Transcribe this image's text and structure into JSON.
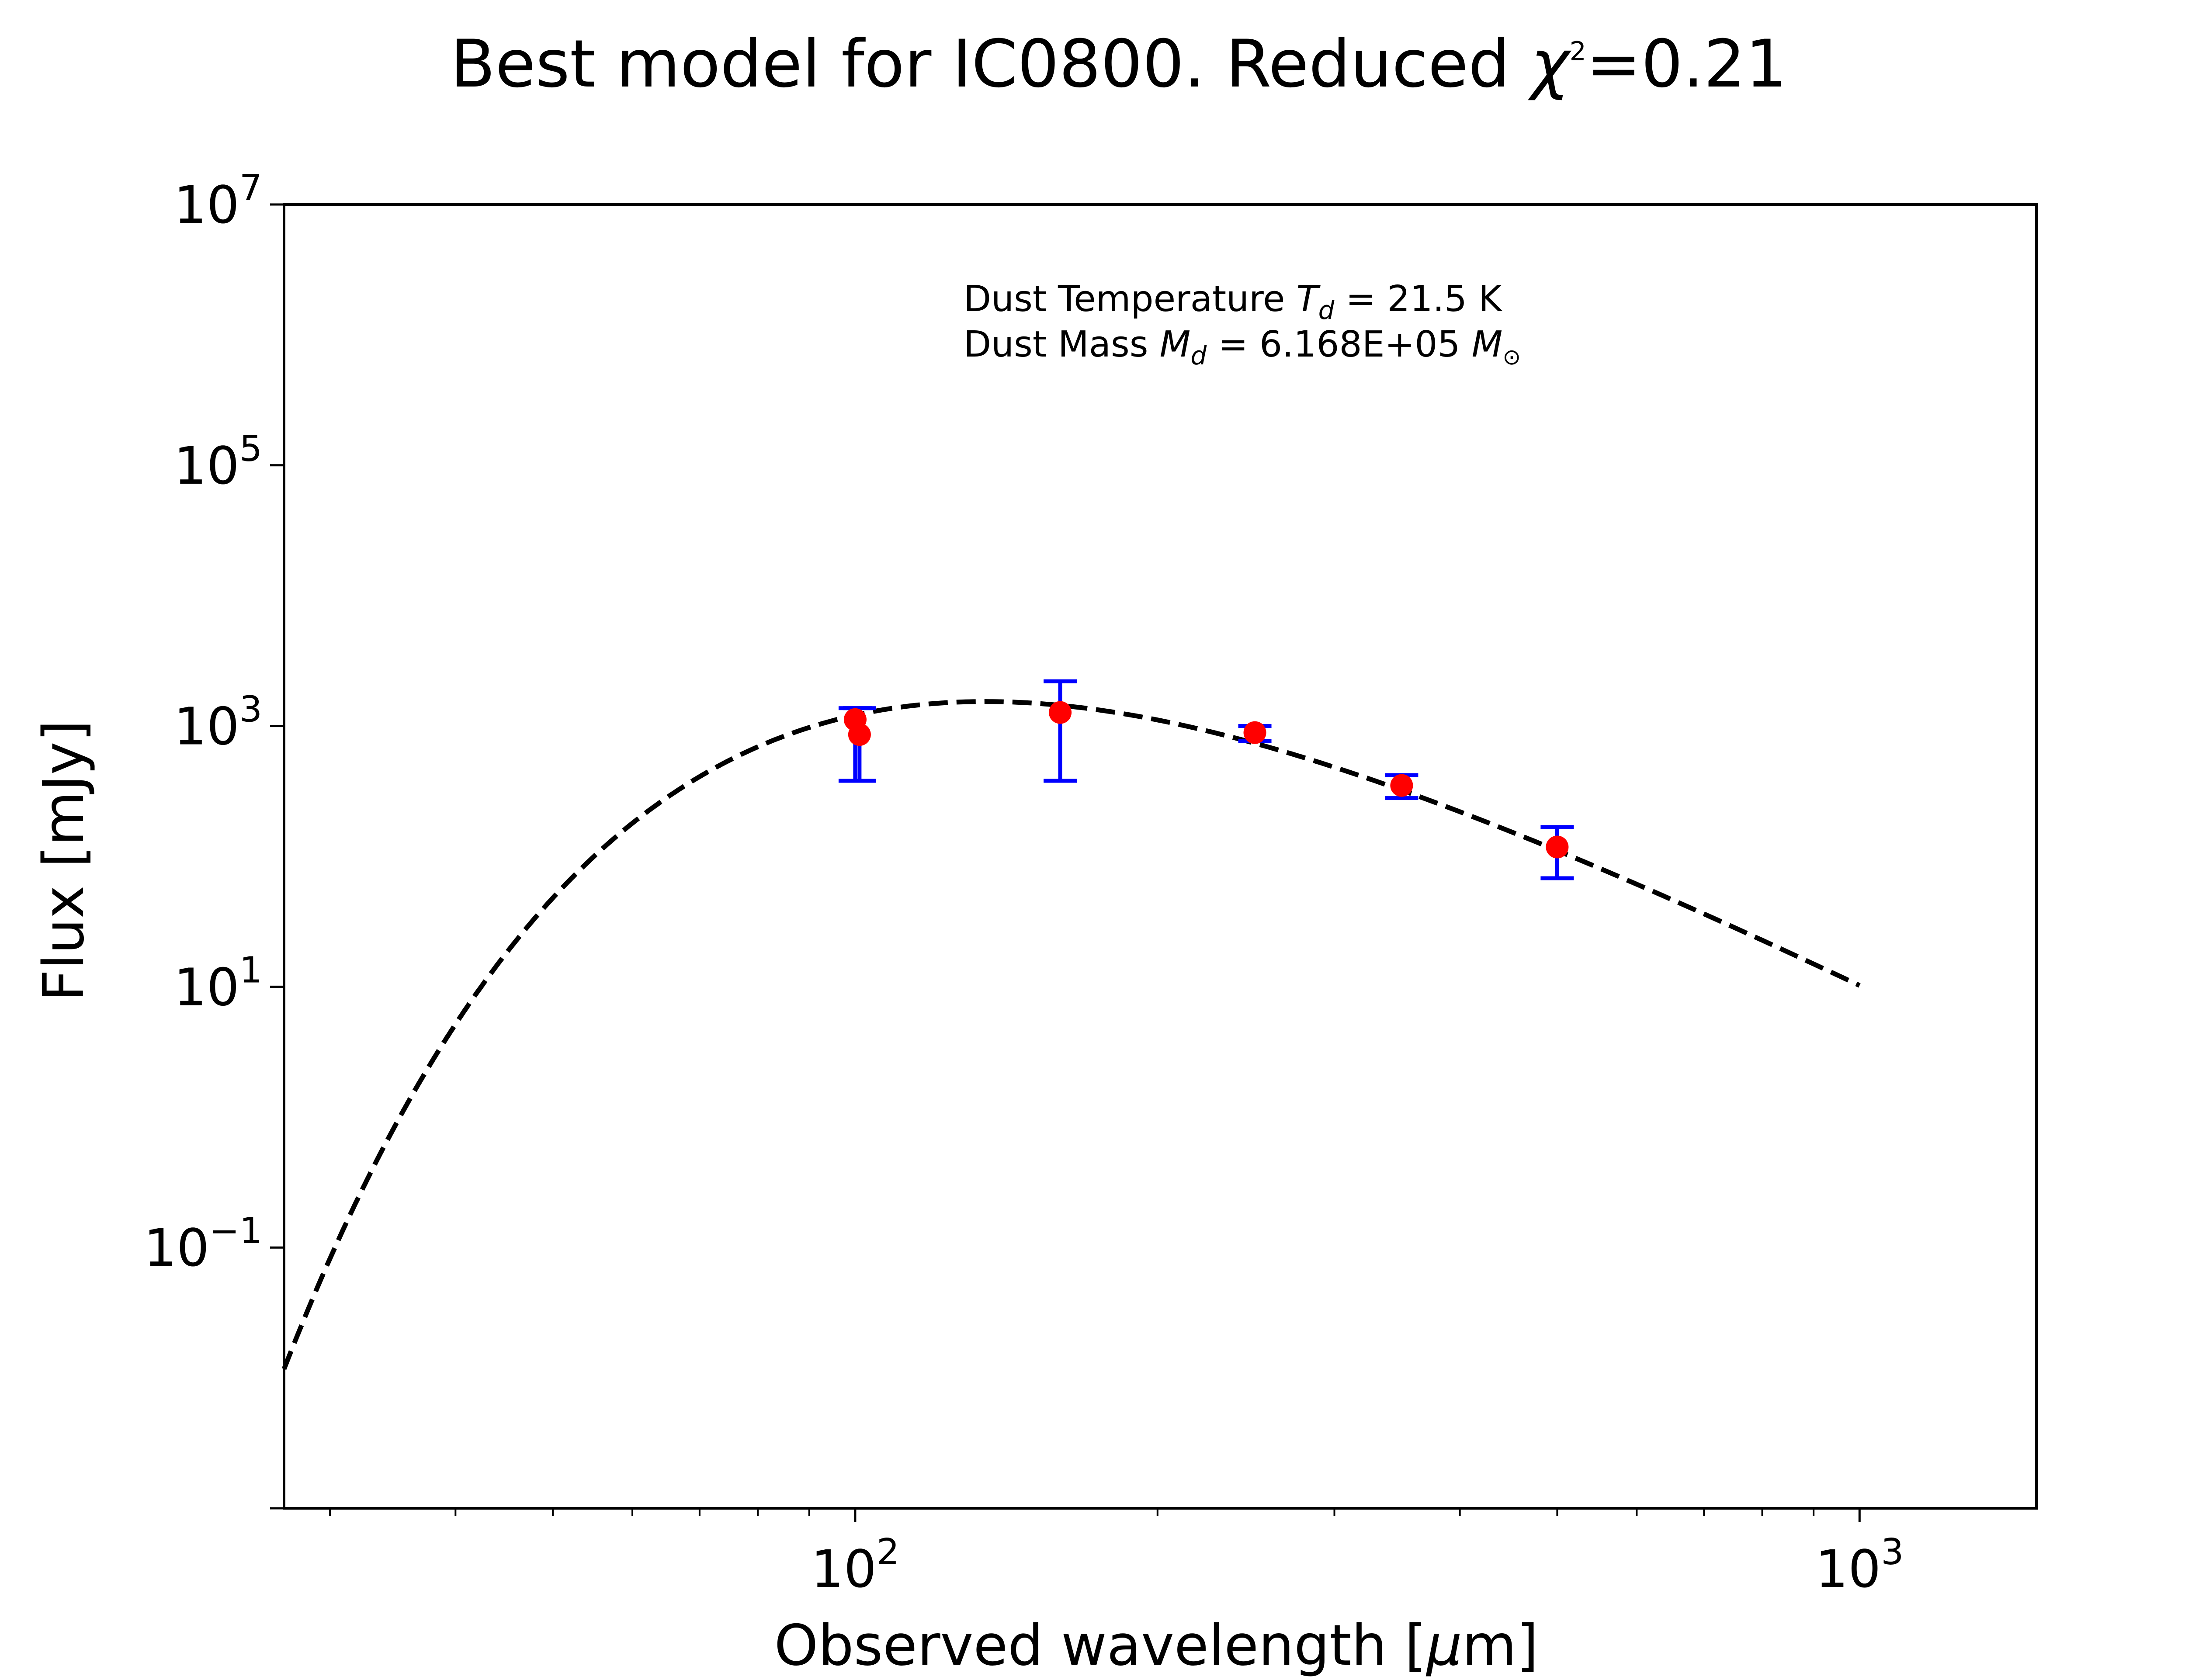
{
  "chart_data": {
    "type": "scatter",
    "title": {
      "prefix": "Best model for IC0800. Reduced ",
      "chi_symbol": "χ",
      "chi_exponent": "2",
      "suffix": "=0.21"
    },
    "xlabel": {
      "prefix": "Observed wavelength [",
      "mu": "μ",
      "suffix": "m]"
    },
    "ylabel": "Flux [mJy]",
    "xscale": "log",
    "yscale": "log",
    "xlim": [
      27,
      1500
    ],
    "ylim": [
      0.001,
      10000000
    ],
    "grid": false,
    "x_ticks": [
      {
        "value": 100,
        "base": "10",
        "exp": "2"
      },
      {
        "value": 1000,
        "base": "10",
        "exp": "3"
      }
    ],
    "x_minor_ticks": [
      30,
      40,
      50,
      60,
      70,
      80,
      90,
      200,
      300,
      400,
      500,
      600,
      700,
      800,
      900
    ],
    "y_ticks": [
      {
        "value": 0.001,
        "base": "",
        "exp": ""
      },
      {
        "value": 0.1,
        "base": "10",
        "exp": "−1"
      },
      {
        "value": 10,
        "base": "10",
        "exp": "1"
      },
      {
        "value": 1000,
        "base": "10",
        "exp": "3"
      },
      {
        "value": 100000,
        "base": "10",
        "exp": "5"
      },
      {
        "value": 10000000,
        "base": "10",
        "exp": "7"
      }
    ],
    "annotation": {
      "line1": {
        "prefix": "Dust Temperature ",
        "sym": "T",
        "sub": "d",
        "suffix": " = 21.5 K"
      },
      "line2": {
        "prefix": "Dust Mass ",
        "sym": "M",
        "sub": "d",
        "mid": " = 6.168E+05 ",
        "sym2": "M",
        "sub2": "⊙"
      }
    },
    "model": {
      "name": "",
      "style": "dashed",
      "color": "#000000",
      "temperature_K": 21.5,
      "beta": 2.0,
      "peak_flux_mJy": 1540,
      "lambda_range": [
        27,
        1000
      ]
    },
    "series": [
      {
        "name": "",
        "color": "#ff0000",
        "errorbar_color": "#0000ff",
        "points": [
          {
            "x": 100,
            "y": 1120,
            "yerr_low": 380,
            "yerr_high": 1370
          },
          {
            "x": 101,
            "y": 860,
            "yerr_low": 380,
            "yerr_high": 1370
          },
          {
            "x": 160,
            "y": 1270,
            "yerr_low": 380,
            "yerr_high": 2200
          },
          {
            "x": 250,
            "y": 890,
            "yerr_low": 770,
            "yerr_high": 1000
          },
          {
            "x": 350,
            "y": 350,
            "yerr_low": 280,
            "yerr_high": 420
          },
          {
            "x": 500,
            "y": 118,
            "yerr_low": 68,
            "yerr_high": 168
          }
        ]
      }
    ]
  }
}
